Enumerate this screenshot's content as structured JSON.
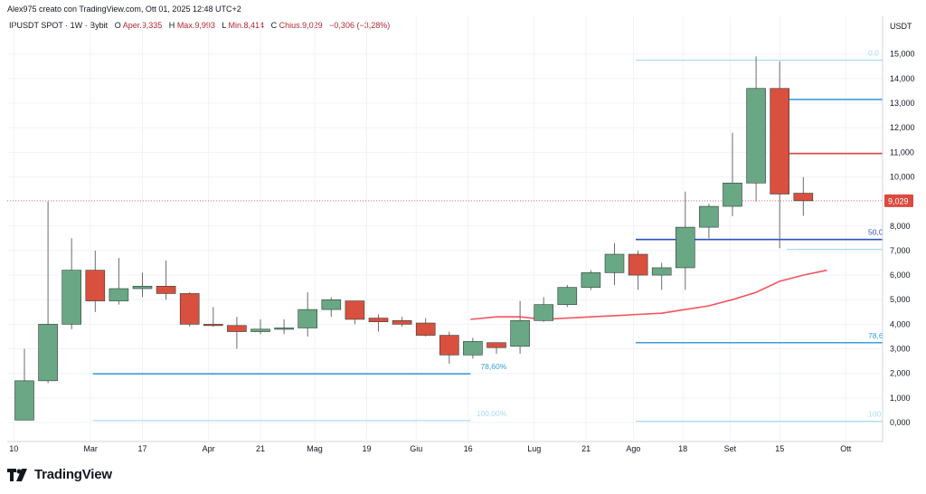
{
  "header": {
    "credit": "Alex975 creato con TradingView.com, Ott 01, 2025 12:48 UTC+2",
    "symbol": "IPUSDT SPOT · 1W · Bybit",
    "o_label": "O",
    "o_value": "Aper.9,335",
    "h_label": "H",
    "h_value": "Max.9,993",
    "l_label": "L",
    "l_value": "Min.8,414",
    "c_label": "C",
    "c_value": "Chius.9,029",
    "change": "−0,306 (−3,28%)"
  },
  "footer": {
    "brand": "TradingView"
  },
  "colors": {
    "up": "#6aa784",
    "down": "#d9503f",
    "ma": "#f2545b",
    "fib_dark": "#3d9ed8",
    "fib_light": "#a8dcef",
    "blue_line": "#2f4fbf",
    "last_price": "#dc4a3f"
  },
  "chart_data": {
    "type": "candlestick",
    "currency": "USDT",
    "y_axis_title": "USDT",
    "ylim": [
      -0.7,
      15.8
    ],
    "yticks": [
      0,
      1,
      2,
      3,
      4,
      5,
      6,
      7,
      8,
      9,
      10,
      11,
      12,
      13,
      14,
      15
    ],
    "ytick_labels": [
      "0,000",
      "1,000",
      "2,000",
      "3,000",
      "4,000",
      "5,000",
      "6,000",
      "7,000",
      "8,000",
      "9,000",
      "10,000",
      "11,000",
      "12,000",
      "13,000",
      "14,000",
      "15,000"
    ],
    "x_labels": [
      {
        "label": "10",
        "i": -0.45
      },
      {
        "label": "Mar",
        "i": 2.8
      },
      {
        "label": "17",
        "i": 5.0
      },
      {
        "label": "Apr",
        "i": 7.8
      },
      {
        "label": "21",
        "i": 10.0
      },
      {
        "label": "Mag",
        "i": 12.3
      },
      {
        "label": "19",
        "i": 14.5
      },
      {
        "label": "Giu",
        "i": 16.6
      },
      {
        "label": "16",
        "i": 18.8
      },
      {
        "label": "Lug",
        "i": 21.6
      },
      {
        "label": "21",
        "i": 23.8
      },
      {
        "label": "Ago",
        "i": 25.8
      },
      {
        "label": "18",
        "i": 27.9
      },
      {
        "label": "Set",
        "i": 29.9
      },
      {
        "label": "15",
        "i": 32.0
      },
      {
        "label": "Ott",
        "i": 34.8
      }
    ],
    "candles": [
      {
        "o": 0.1,
        "h": 3.0,
        "l": 0.1,
        "c": 1.7
      },
      {
        "o": 1.7,
        "h": 9.0,
        "l": 1.6,
        "c": 4.0
      },
      {
        "o": 4.0,
        "h": 7.5,
        "l": 3.8,
        "c": 6.2
      },
      {
        "o": 6.2,
        "h": 7.0,
        "l": 4.5,
        "c": 4.95
      },
      {
        "o": 4.95,
        "h": 6.7,
        "l": 4.8,
        "c": 5.45
      },
      {
        "o": 5.45,
        "h": 6.1,
        "l": 5.1,
        "c": 5.55
      },
      {
        "o": 5.55,
        "h": 6.6,
        "l": 5.0,
        "c": 5.25
      },
      {
        "o": 5.25,
        "h": 5.3,
        "l": 3.9,
        "c": 4.0
      },
      {
        "o": 4.0,
        "h": 4.7,
        "l": 3.9,
        "c": 3.95
      },
      {
        "o": 3.95,
        "h": 4.3,
        "l": 3.0,
        "c": 3.7
      },
      {
        "o": 3.7,
        "h": 4.2,
        "l": 3.6,
        "c": 3.8
      },
      {
        "o": 3.8,
        "h": 4.2,
        "l": 3.6,
        "c": 3.85
      },
      {
        "o": 3.85,
        "h": 5.3,
        "l": 3.5,
        "c": 4.6
      },
      {
        "o": 4.6,
        "h": 5.1,
        "l": 4.3,
        "c": 5.0
      },
      {
        "o": 4.95,
        "h": 4.95,
        "l": 4.0,
        "c": 4.2
      },
      {
        "o": 4.25,
        "h": 4.4,
        "l": 3.7,
        "c": 4.1
      },
      {
        "o": 4.15,
        "h": 4.3,
        "l": 3.9,
        "c": 4.0
      },
      {
        "o": 4.05,
        "h": 4.25,
        "l": 3.5,
        "c": 3.55
      },
      {
        "o": 3.55,
        "h": 3.7,
        "l": 2.4,
        "c": 2.75
      },
      {
        "o": 2.75,
        "h": 3.45,
        "l": 2.6,
        "c": 3.3
      },
      {
        "o": 3.25,
        "h": 3.25,
        "l": 2.8,
        "c": 3.05
      },
      {
        "o": 3.1,
        "h": 4.95,
        "l": 2.8,
        "c": 4.15
      },
      {
        "o": 4.15,
        "h": 5.1,
        "l": 4.1,
        "c": 4.8
      },
      {
        "o": 4.8,
        "h": 5.6,
        "l": 4.7,
        "c": 5.5
      },
      {
        "o": 5.5,
        "h": 6.2,
        "l": 5.4,
        "c": 6.1
      },
      {
        "o": 6.1,
        "h": 7.3,
        "l": 5.6,
        "c": 6.85
      },
      {
        "o": 6.85,
        "h": 7.0,
        "l": 5.4,
        "c": 6.0
      },
      {
        "o": 6.0,
        "h": 6.5,
        "l": 5.4,
        "c": 6.3
      },
      {
        "o": 6.3,
        "h": 9.4,
        "l": 5.4,
        "c": 7.95
      },
      {
        "o": 7.95,
        "h": 8.9,
        "l": 7.5,
        "c": 8.8
      },
      {
        "o": 8.8,
        "h": 11.8,
        "l": 8.4,
        "c": 9.75
      },
      {
        "o": 9.75,
        "h": 14.9,
        "l": 9.0,
        "c": 13.6
      },
      {
        "o": 13.6,
        "h": 14.7,
        "l": 7.1,
        "c": 9.3
      },
      {
        "o": 9.335,
        "h": 9.993,
        "l": 8.414,
        "c": 9.029
      }
    ],
    "ma": [
      {
        "i": 18.9,
        "v": 4.2
      },
      {
        "i": 20,
        "v": 4.3
      },
      {
        "i": 21,
        "v": 4.3
      },
      {
        "i": 22,
        "v": 4.2
      },
      {
        "i": 23,
        "v": 4.25
      },
      {
        "i": 24,
        "v": 4.3
      },
      {
        "i": 25,
        "v": 4.35
      },
      {
        "i": 26,
        "v": 4.4
      },
      {
        "i": 27,
        "v": 4.45
      },
      {
        "i": 28,
        "v": 4.6
      },
      {
        "i": 29,
        "v": 4.75
      },
      {
        "i": 30,
        "v": 5.0
      },
      {
        "i": 31,
        "v": 5.3
      },
      {
        "i": 32,
        "v": 5.75
      },
      {
        "i": 33,
        "v": 6.0
      },
      {
        "i": 34,
        "v": 6.2
      }
    ],
    "fib_left": [
      {
        "label": "78,60%",
        "value": 1.98,
        "from_i": 2.9,
        "to_i": 18.9,
        "tone": "dark"
      },
      {
        "label": "100,00%",
        "value": 0.08,
        "from_i": 2.9,
        "to_i": 18.9,
        "tone": "light"
      }
    ],
    "fib_right": [
      {
        "label": "0,0",
        "value": 14.75,
        "from_i": 25.9,
        "to_i": 35.5,
        "tone": "light"
      },
      {
        "label": "",
        "value": 13.15,
        "from_i": 32.3,
        "to_i": 35.5,
        "tone": "dark"
      },
      {
        "label": "",
        "value": 10.95,
        "from_i": 32.3,
        "to_i": 35.5,
        "tone": "red"
      },
      {
        "label": "50,0",
        "value": 7.45,
        "from_i": 25.9,
        "to_i": 35.5,
        "tone": "blue"
      },
      {
        "label": "",
        "value": 7.05,
        "from_i": 32.3,
        "to_i": 35.5,
        "tone": "light"
      },
      {
        "label": "78,6",
        "value": 3.25,
        "from_i": 25.9,
        "to_i": 35.5,
        "tone": "dark"
      },
      {
        "label": "100",
        "value": 0.05,
        "from_i": 25.9,
        "to_i": 35.5,
        "tone": "light"
      }
    ],
    "last_price": {
      "value": 9.029,
      "label": "9,029"
    }
  }
}
